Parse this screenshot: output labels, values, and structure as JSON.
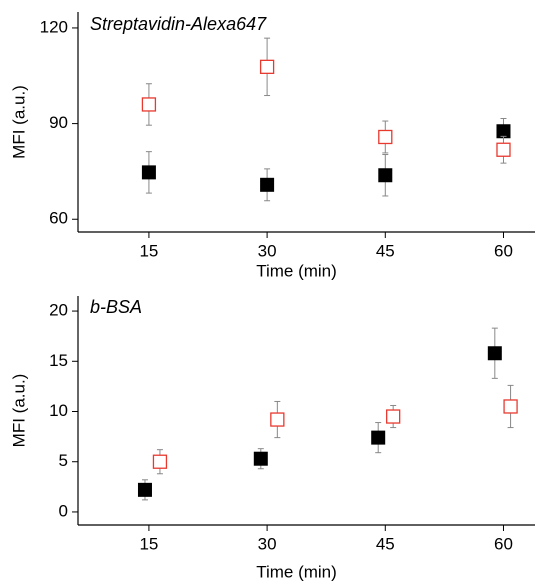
{
  "chart_data": [
    {
      "type": "scatter",
      "annotation": "Streptavidin-Alexa647",
      "xlabel": "Time (min)",
      "ylabel": "MFI (a.u.)",
      "xlim": [
        6,
        64
      ],
      "xticks": [
        15,
        30,
        45,
        60
      ],
      "ylim": [
        56,
        125
      ],
      "yticks": [
        60,
        90,
        120
      ],
      "series": [
        {
          "color": "#000000",
          "marker": "filled-square",
          "x": [
            15,
            30,
            45,
            60
          ],
          "values": [
            74.7,
            70.8,
            73.8,
            87.6
          ],
          "errors": [
            6.5,
            5,
            6.5,
            4
          ]
        },
        {
          "color": "#e8392f",
          "marker": "open-square",
          "x": [
            15,
            30,
            45,
            60
          ],
          "values": [
            96,
            107.8,
            85.8,
            81.8
          ],
          "errors": [
            6.5,
            9,
            5,
            4.2
          ]
        }
      ]
    },
    {
      "type": "scatter",
      "annotation": "b-BSA",
      "xlabel": "Time (min)",
      "ylabel": "MFI (a.u.)",
      "xlim": [
        6,
        64
      ],
      "xticks": [
        15,
        30,
        45,
        60
      ],
      "ylim": [
        -1.3,
        21.5
      ],
      "yticks": [
        0,
        5,
        10,
        15,
        20
      ],
      "series": [
        {
          "color": "#000000",
          "marker": "filled-square",
          "x": [
            14.5,
            29.2,
            44.1,
            58.9
          ],
          "values": [
            2.2,
            5.3,
            7.4,
            15.8
          ],
          "errors": [
            1,
            1,
            1.5,
            2.5
          ]
        },
        {
          "color": "#e8392f",
          "marker": "open-square",
          "x": [
            16.4,
            31.3,
            46,
            60.9
          ],
          "values": [
            5,
            9.2,
            9.5,
            10.5
          ],
          "errors": [
            1.2,
            1.8,
            1.1,
            2.1
          ]
        }
      ]
    }
  ]
}
